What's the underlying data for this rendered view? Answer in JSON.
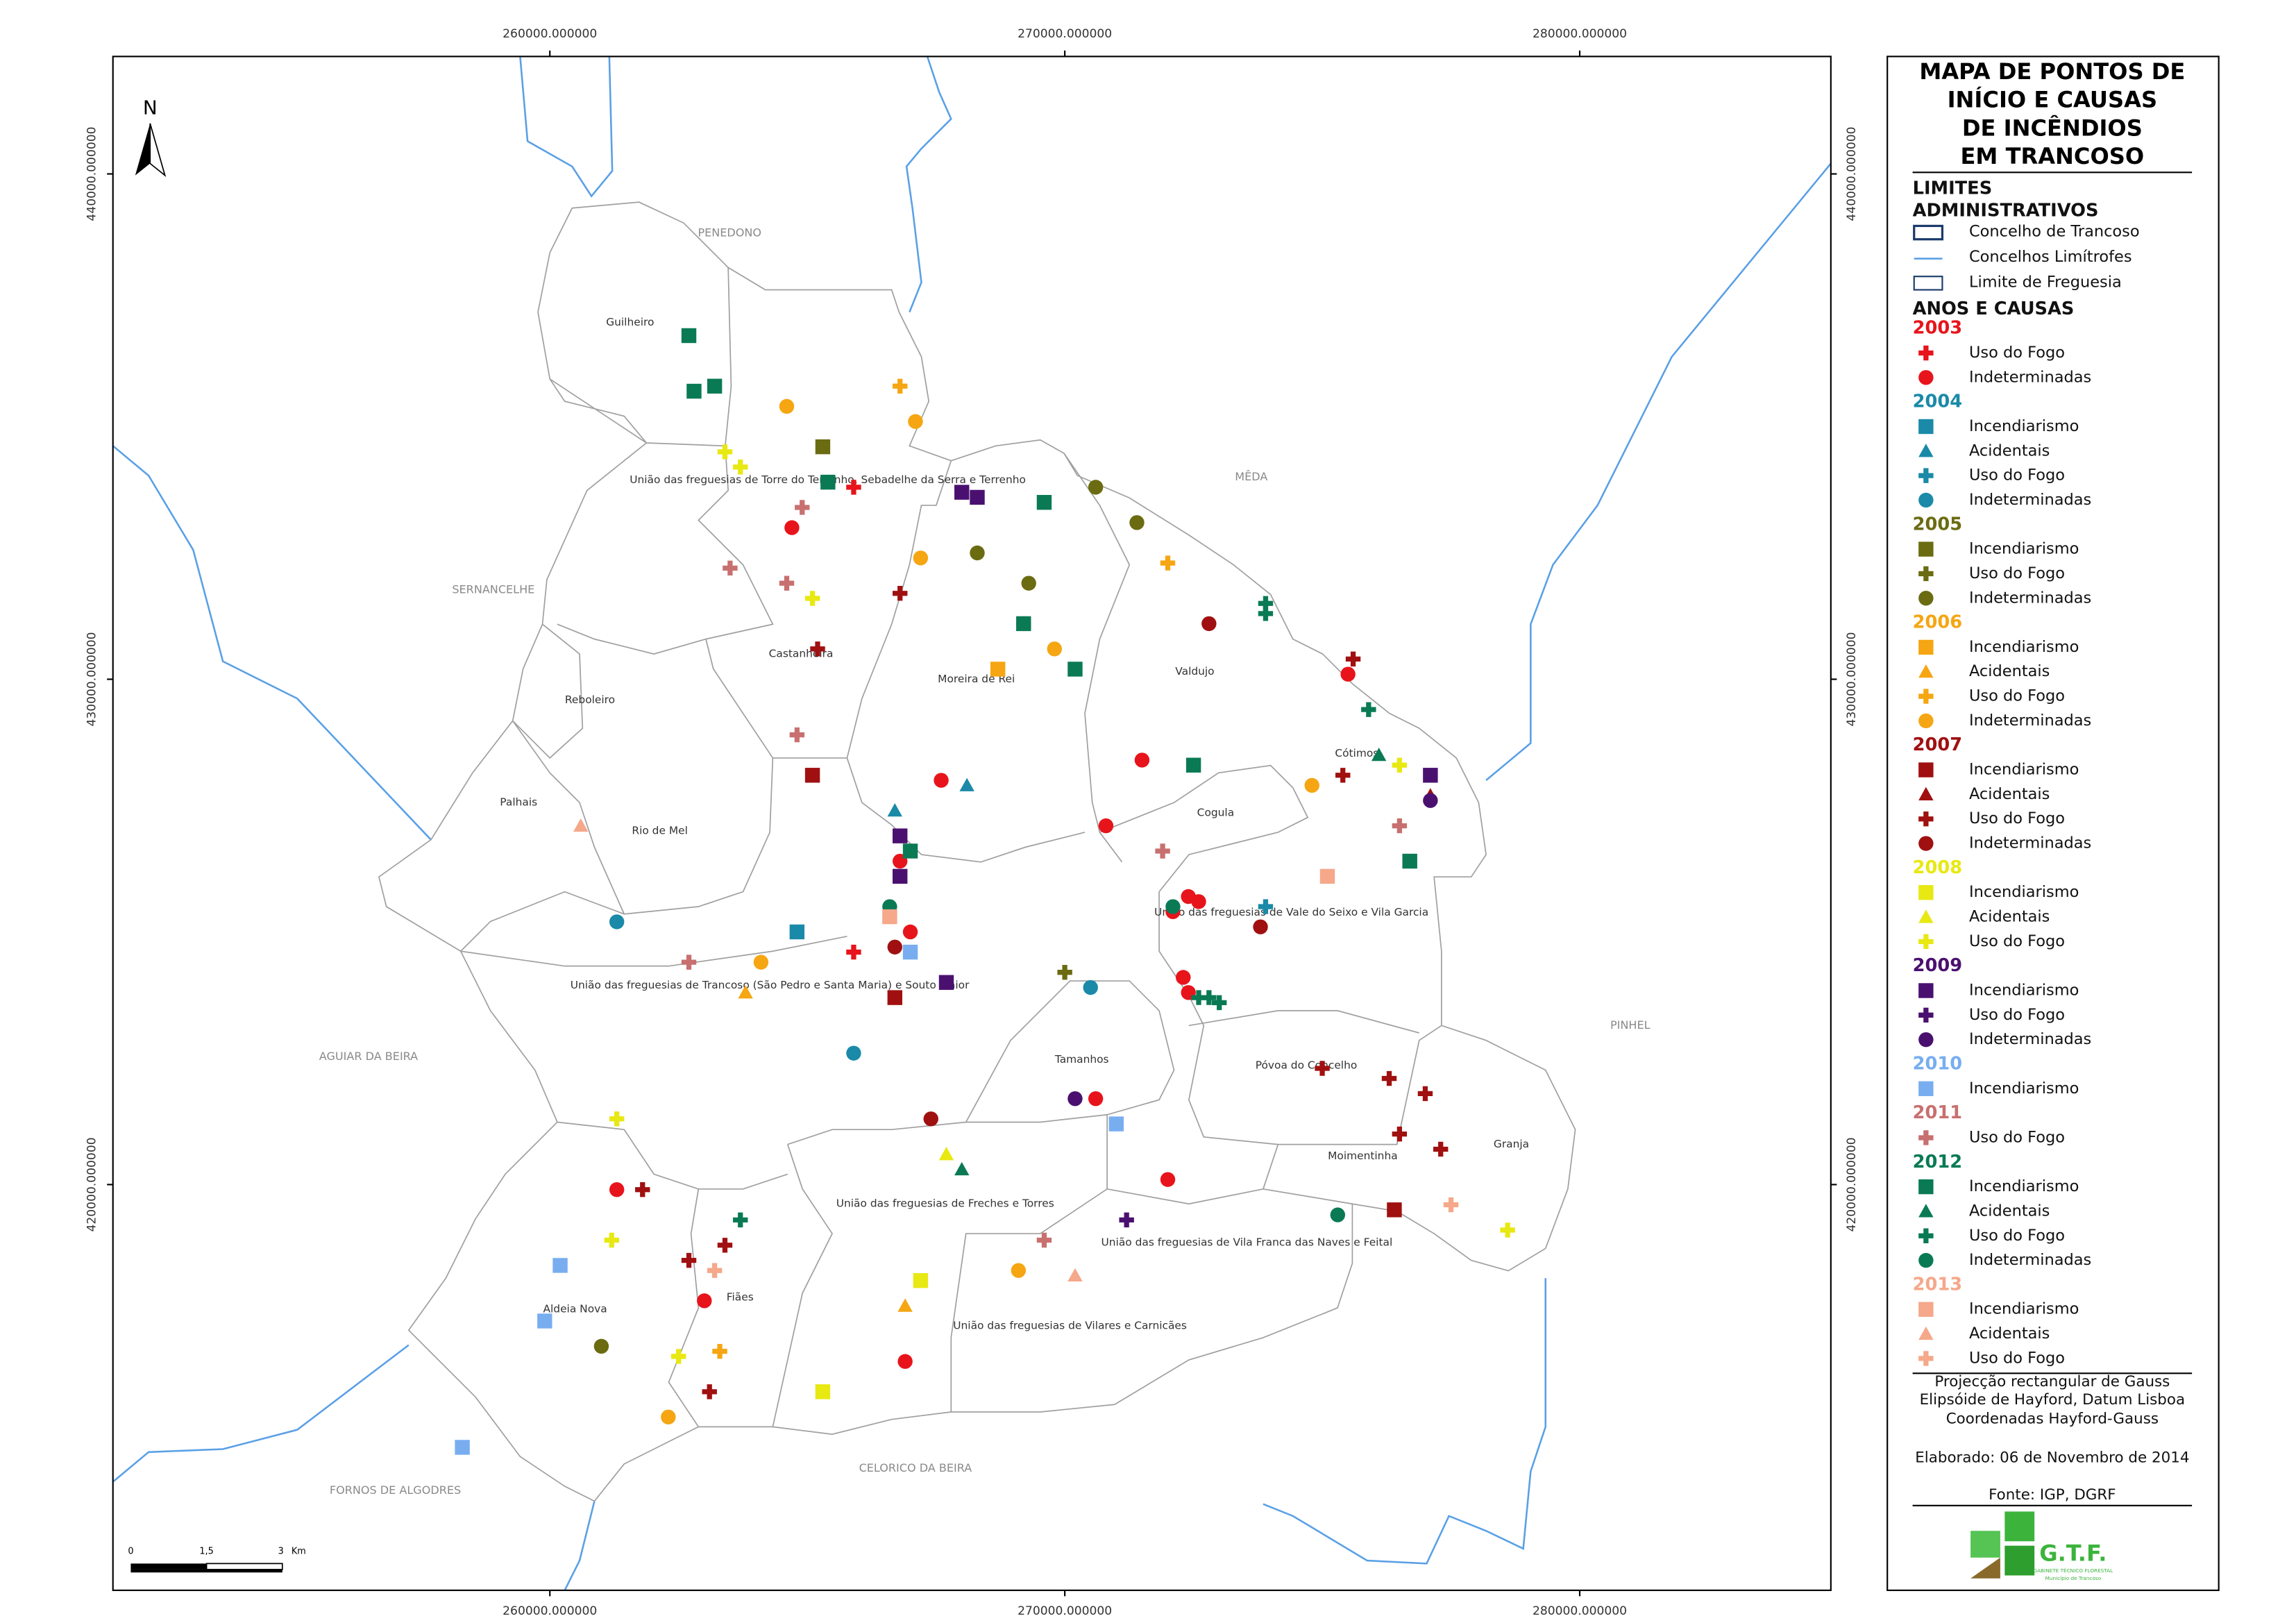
{
  "map": {
    "xlim": [
      251515,
      284877
    ],
    "ylim": [
      411971,
      442324
    ],
    "xticks": [
      {
        "value": 260000,
        "label": "260000.000000"
      },
      {
        "value": 270000,
        "label": "270000.000000"
      },
      {
        "value": 280000,
        "label": "280000.000000"
      }
    ],
    "yticks": [
      {
        "value": 440000,
        "label": "440000.000000"
      },
      {
        "value": 430000,
        "label": "430000.000000"
      },
      {
        "value": 420000,
        "label": "420000.000000"
      }
    ],
    "north": "N",
    "scale": {
      "labels": [
        "0",
        "1,5",
        "3"
      ],
      "unit": "Km"
    },
    "neighbours": [
      "PENEDONO",
      "MÊDA",
      "SERNANCELHE",
      "AGUIAR DA BEIRA",
      "FORNOS DE ALGODRES",
      "CELORICO DA BEIRA",
      "PINHEL"
    ],
    "parishes": [
      "Guilheiro",
      "União das freguesias de Torre do Terrenho, Sebadelhe da Serra e Terrenho",
      "Castanheira",
      "Moreira de Rei",
      "Valdujo",
      "Reboleiro",
      "Palhais",
      "Rio de Mel",
      "Cótimos",
      "Cogula",
      "União das freguesias de Vale do Seixo e Vila Garcia",
      "União das freguesias de Trancoso (São Pedro e Santa Maria) e Souto Maior",
      "Tamanhos",
      "Póvoa do Concelho",
      "Moimentinha",
      "Granja",
      "União das freguesias de Freches e Torres",
      "União das freguesias de Vila Franca das Naves e Feital",
      "Aldeia Nova",
      "Fiães",
      "União das freguesias de Vilares e Carnicães"
    ]
  },
  "legend": {
    "title_lines": [
      "MAPA DE PONTOS DE",
      "INÍCIO E CAUSAS",
      "DE INCÊNDIOS",
      "EM TRANCOSO"
    ],
    "limits_title_lines": [
      "LIMITES",
      "ADMINISTRATIVOS"
    ],
    "limits": [
      "Concelho de Trancoso",
      "Concelhos Limítrofes",
      "Limite de Freguesia"
    ],
    "causes_title": "ANOS E CAUSAS",
    "groups": [
      {
        "year": "2003",
        "color": "#e8141b",
        "items": [
          {
            "label": "Uso do Fogo",
            "shape": "cross",
            "points": [
              [
                265900,
                433800
              ],
              [
                265900,
                424600
              ]
            ]
          },
          {
            "label": "Indeterminadas",
            "shape": "circle",
            "points": [
              [
                264700,
                433000
              ],
              [
                269200,
                431100
              ],
              [
                267600,
                428000
              ],
              [
                270800,
                427100
              ],
              [
                266800,
                426400
              ],
              [
                267000,
                425000
              ],
              [
                271500,
                428400
              ],
              [
                272400,
                425700
              ],
              [
                272600,
                425600
              ],
              [
                272100,
                425400
              ],
              [
                272300,
                424100
              ],
              [
                272400,
                423800
              ],
              [
                270600,
                421700
              ],
              [
                272000,
                420100
              ],
              [
                261300,
                419900
              ],
              [
                263000,
                417700
              ],
              [
                266900,
                416500
              ],
              [
                275500,
                430100
              ]
            ]
          }
        ]
      },
      {
        "year": "2004",
        "color": "#1a8aa8",
        "items": [
          {
            "label": "Incendiarismo",
            "shape": "square",
            "points": [
              [
                264800,
                425000
              ]
            ]
          },
          {
            "label": "Acidentais",
            "shape": "triangle",
            "points": [
              [
                266700,
                427400
              ],
              [
                268100,
                427900
              ]
            ]
          },
          {
            "label": "Uso do Fogo",
            "shape": "cross",
            "points": [
              [
                273900,
                425500
              ]
            ]
          },
          {
            "label": "Indeterminadas",
            "shape": "circle",
            "points": [
              [
                261300,
                425200
              ],
              [
                265900,
                422600
              ],
              [
                270500,
                423900
              ]
            ]
          }
        ]
      },
      {
        "year": "2005",
        "color": "#6b6b12",
        "items": [
          {
            "label": "Incendiarismo",
            "shape": "square",
            "points": [
              [
                265300,
                434600
              ]
            ]
          },
          {
            "label": "Uso do Fogo",
            "shape": "cross",
            "points": [
              [
                270000,
                424200
              ]
            ]
          },
          {
            "label": "Indeterminadas",
            "shape": "circle",
            "points": [
              [
                270600,
                433800
              ],
              [
                271400,
                433100
              ],
              [
                268300,
                432500
              ],
              [
                269300,
                431900
              ],
              [
                261000,
                416800
              ]
            ]
          }
        ]
      },
      {
        "year": "2006",
        "color": "#f5a612",
        "items": [
          {
            "label": "Incendiarismo",
            "shape": "square",
            "points": [
              [
                268700,
                430200
              ]
            ]
          },
          {
            "label": "Acidentais",
            "shape": "triangle",
            "points": [
              [
                263800,
                423800
              ],
              [
                266900,
                417600
              ]
            ]
          },
          {
            "label": "Uso do Fogo",
            "shape": "cross",
            "points": [
              [
                266800,
                435800
              ],
              [
                272000,
                432300
              ],
              [
                263300,
                416700
              ]
            ]
          },
          {
            "label": "Indeterminadas",
            "shape": "circle",
            "points": [
              [
                264600,
                435400
              ],
              [
                267100,
                435100
              ],
              [
                267200,
                432400
              ],
              [
                269800,
                430600
              ],
              [
                264100,
                424400
              ],
              [
                274800,
                427900
              ],
              [
                269100,
                418300
              ],
              [
                262300,
                415400
              ]
            ]
          }
        ]
      },
      {
        "year": "2007",
        "color": "#a01010",
        "items": [
          {
            "label": "Incendiarismo",
            "shape": "square",
            "points": [
              [
                265100,
                428100
              ],
              [
                266700,
                423700
              ],
              [
                276400,
                419500
              ]
            ]
          },
          {
            "label": "Acidentais",
            "shape": "triangle",
            "points": [
              [
                277100,
                427700
              ]
            ]
          },
          {
            "label": "Uso do Fogo",
            "shape": "cross",
            "points": [
              [
                266800,
                431700
              ],
              [
                265200,
                430600
              ],
              [
                275600,
                430400
              ],
              [
                275400,
                428100
              ],
              [
                276300,
                422100
              ],
              [
                277000,
                421800
              ],
              [
                276500,
                421000
              ],
              [
                277300,
                420700
              ],
              [
                261800,
                419900
              ],
              [
                262700,
                418500
              ],
              [
                263400,
                418800
              ],
              [
                263100,
                415900
              ],
              [
                275000,
                422300
              ]
            ]
          },
          {
            "label": "Indeterminadas",
            "shape": "circle",
            "points": [
              [
                272800,
                431100
              ],
              [
                273800,
                425100
              ],
              [
                267400,
                421300
              ],
              [
                266700,
                424700
              ]
            ]
          }
        ]
      },
      {
        "year": "2008",
        "color": "#e8e812",
        "items": [
          {
            "label": "Incendiarismo",
            "shape": "square",
            "points": [
              [
                267200,
                418100
              ],
              [
                265300,
                415900
              ]
            ]
          },
          {
            "label": "Acidentais",
            "shape": "triangle",
            "points": [
              [
                267700,
                420600
              ]
            ]
          },
          {
            "label": "Uso do Fogo",
            "shape": "cross",
            "points": [
              [
                263400,
                434500
              ],
              [
                263700,
                434200
              ],
              [
                265100,
                431600
              ],
              [
                276500,
                428300
              ],
              [
                261300,
                421300
              ],
              [
                261200,
                418900
              ],
              [
                262500,
                416600
              ],
              [
                278600,
                419100
              ]
            ]
          }
        ]
      },
      {
        "year": "2009",
        "color": "#4a1070",
        "items": [
          {
            "label": "Incendiarismo",
            "shape": "square",
            "points": [
              [
                268000,
                433700
              ],
              [
                268300,
                433600
              ],
              [
                266800,
                426900
              ],
              [
                266800,
                426100
              ],
              [
                267700,
                424000
              ],
              [
                277100,
                428100
              ]
            ]
          },
          {
            "label": "Uso do Fogo",
            "shape": "cross",
            "points": [
              [
                271200,
                419300
              ]
            ]
          },
          {
            "label": "Indeterminadas",
            "shape": "circle",
            "points": [
              [
                270200,
                421700
              ],
              [
                277100,
                427600
              ]
            ]
          }
        ]
      },
      {
        "year": "2010",
        "color": "#78aef0",
        "items": [
          {
            "label": "Incendiarismo",
            "shape": "square",
            "points": [
              [
                267000,
                424600
              ],
              [
                271000,
                421200
              ],
              [
                260200,
                418400
              ],
              [
                259900,
                417300
              ],
              [
                258300,
                414800
              ]
            ]
          }
        ]
      },
      {
        "year": "2011",
        "color": "#c87070",
        "items": [
          {
            "label": "Uso do Fogo",
            "shape": "cross",
            "points": [
              [
                264900,
                433400
              ],
              [
                263500,
                432200
              ],
              [
                264600,
                431900
              ],
              [
                264800,
                428900
              ],
              [
                271900,
                426600
              ],
              [
                276500,
                427100
              ],
              [
                262700,
                424400
              ],
              [
                269600,
                418900
              ]
            ]
          }
        ]
      },
      {
        "year": "2012",
        "color": "#0a7a55",
        "items": [
          {
            "label": "Incendiarismo",
            "shape": "square",
            "points": [
              [
                262700,
                436800
              ],
              [
                262800,
                435700
              ],
              [
                263200,
                435800
              ],
              [
                265400,
                433900
              ],
              [
                269600,
                433500
              ],
              [
                269200,
                431100
              ],
              [
                270200,
                430200
              ],
              [
                272500,
                428300
              ],
              [
                267000,
                426600
              ],
              [
                276700,
                426400
              ]
            ]
          },
          {
            "label": "Acidentais",
            "shape": "triangle",
            "points": [
              [
                276100,
                428500
              ],
              [
                268000,
                420300
              ]
            ]
          },
          {
            "label": "Uso do Fogo",
            "shape": "cross",
            "points": [
              [
                273900,
                431500
              ],
              [
                273900,
                431300
              ],
              [
                275900,
                429400
              ],
              [
                272600,
                423700
              ],
              [
                272800,
                423700
              ],
              [
                273000,
                423600
              ],
              [
                263700,
                419300
              ]
            ]
          },
          {
            "label": "Indeterminadas",
            "shape": "circle",
            "points": [
              [
                266600,
                425500
              ],
              [
                272100,
                425500
              ],
              [
                275300,
                419400
              ]
            ]
          }
        ]
      },
      {
        "year": "2013",
        "color": "#f5a88a",
        "items": [
          {
            "label": "Incendiarismo",
            "shape": "square",
            "points": [
              [
                266600,
                425300
              ],
              [
                275100,
                426100
              ]
            ]
          },
          {
            "label": "Acidentais",
            "shape": "triangle",
            "points": [
              [
                260600,
                427100
              ],
              [
                270200,
                418200
              ]
            ]
          },
          {
            "label": "Uso do Fogo",
            "shape": "cross",
            "points": [
              [
                263200,
                418300
              ],
              [
                277500,
                419600
              ]
            ]
          }
        ]
      }
    ]
  },
  "footer": {
    "projection": [
      "Projecção rectangular de Gauss",
      "Elipsóide de Hayford, Datum Lisboa",
      "Coordenadas Hayford-Gauss"
    ],
    "date": "Elaborado: 06 de Novembro de 2014",
    "source": "Fonte: IGP, DGRF",
    "logo": "G.T.F.",
    "logo_sub": [
      "GABINETE TÉCNICO FLORESTAL",
      "Município de Trancoso"
    ]
  }
}
